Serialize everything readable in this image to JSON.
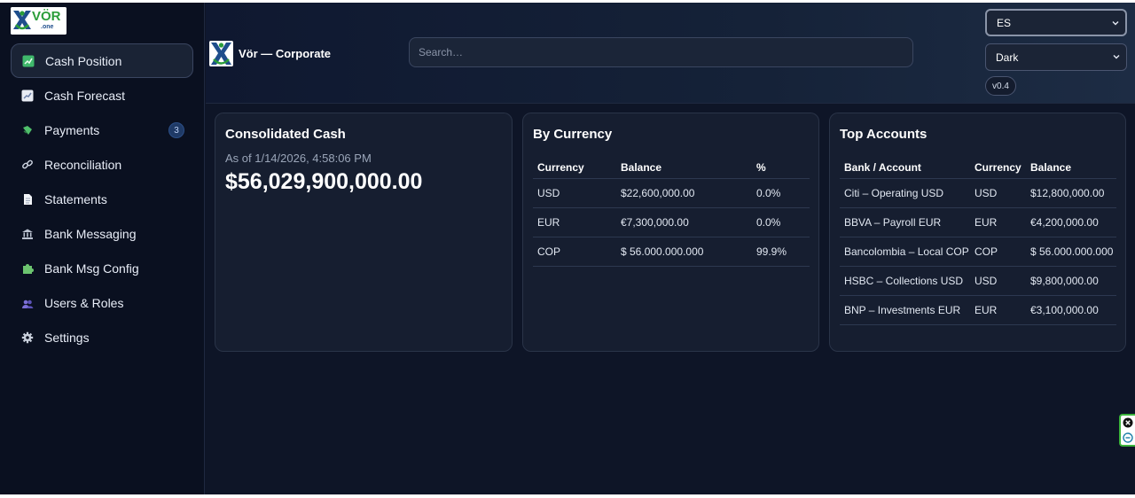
{
  "brand": {
    "logo_text": "VÖR",
    "logo_sub": ".one",
    "title": "Vör — Corporate"
  },
  "sidebar": {
    "items": [
      {
        "label": "Cash Position",
        "icon": "chart-up-icon",
        "active": true
      },
      {
        "label": "Cash Forecast",
        "icon": "chart-line-icon"
      },
      {
        "label": "Payments",
        "icon": "money-wings-icon",
        "badge": "3"
      },
      {
        "label": "Reconciliation",
        "icon": "link-icon"
      },
      {
        "label": "Statements",
        "icon": "document-icon"
      },
      {
        "label": "Bank Messaging",
        "icon": "bank-icon"
      },
      {
        "label": "Bank Msg Config",
        "icon": "puzzle-icon"
      },
      {
        "label": "Users & Roles",
        "icon": "users-icon"
      },
      {
        "label": "Settings",
        "icon": "gear-icon"
      }
    ]
  },
  "header": {
    "search_placeholder": "Search…",
    "language": "ES",
    "theme": "Dark",
    "version": "v0.4"
  },
  "consolidated": {
    "title": "Consolidated Cash",
    "as_of": "As of 1/14/2026, 4:58:06 PM",
    "amount": "$56,029,900,000.00"
  },
  "by_currency": {
    "title": "By Currency",
    "columns": [
      "Currency",
      "Balance",
      "%"
    ],
    "rows": [
      [
        "USD",
        "$22,600,000.00",
        "0.0%"
      ],
      [
        "EUR",
        "€7,300,000.00",
        "0.0%"
      ],
      [
        "COP",
        "$ 56.000.000.000",
        "99.9%"
      ]
    ]
  },
  "top_accounts": {
    "title": "Top Accounts",
    "columns": [
      "Bank / Account",
      "Currency",
      "Balance"
    ],
    "rows": [
      [
        "Citi – Operating USD",
        "USD",
        "$12,800,000.00"
      ],
      [
        "BBVA – Payroll EUR",
        "EUR",
        "€4,200,000.00"
      ],
      [
        "Bancolombia – Local COP",
        "COP",
        "$ 56.000.000.000"
      ],
      [
        "HSBC – Collections USD",
        "USD",
        "$9,800,000.00"
      ],
      [
        "BNP – Investments EUR",
        "EUR",
        "€3,100,000.00"
      ]
    ]
  },
  "colors": {
    "bg": "#0e1527",
    "card": "#161e30",
    "accent": "#1f3a66",
    "logo_green": "#2a9d3a"
  }
}
